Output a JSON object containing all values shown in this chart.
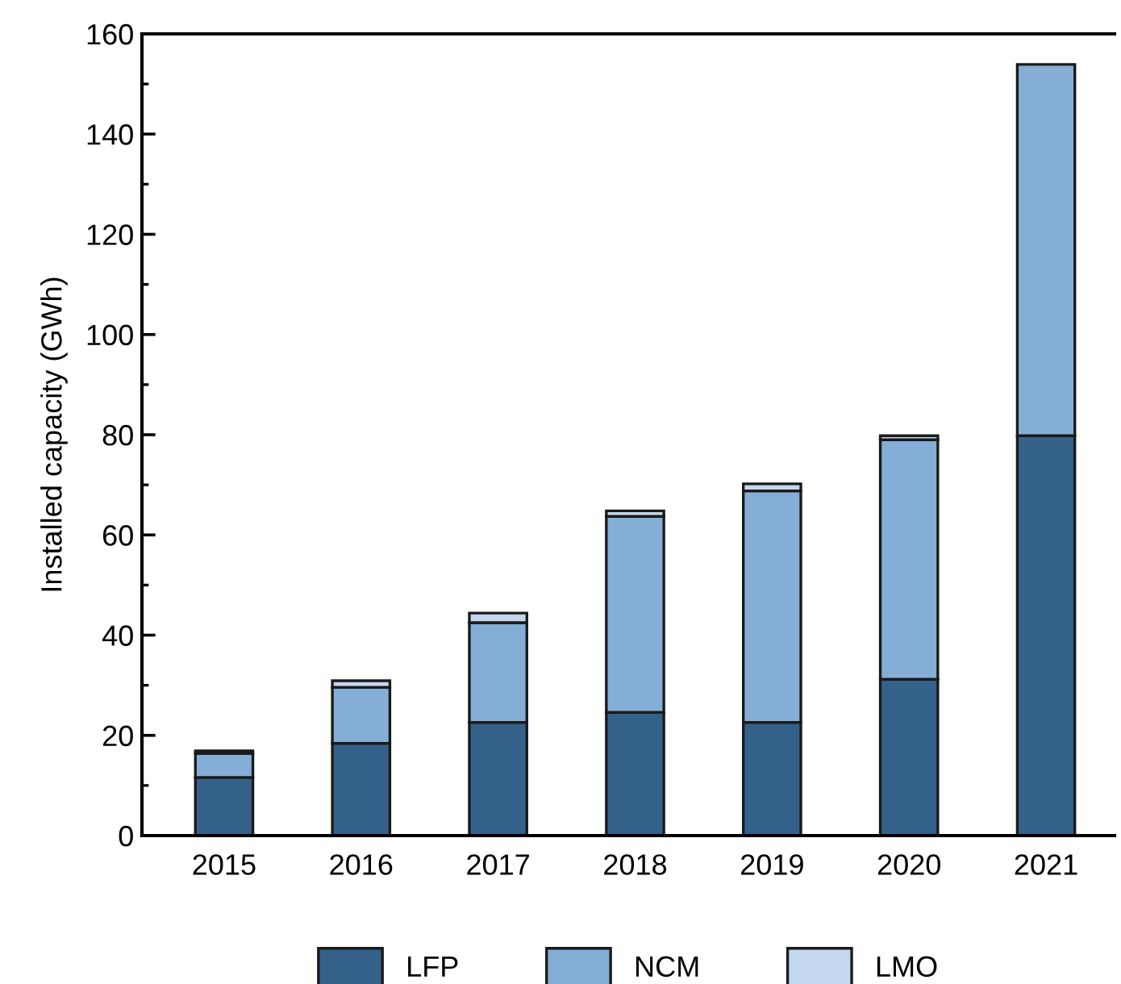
{
  "chart_data": {
    "type": "bar",
    "stacked": true,
    "ylabel": "Installed capacity (GWh)",
    "categories": [
      "2015",
      "2016",
      "2017",
      "2018",
      "2019",
      "2020",
      "2021"
    ],
    "series": [
      {
        "name": "LFP",
        "color": "#346189",
        "values": [
          11.6,
          18.4,
          22.6,
          24.6,
          22.6,
          31.2,
          79.8
        ]
      },
      {
        "name": "NCM",
        "color": "#84aed6",
        "values": [
          4.8,
          11.2,
          19.9,
          39.1,
          46.2,
          47.8,
          74.1
        ]
      },
      {
        "name": "LMO",
        "color": "#c5d7ee",
        "values": [
          0.5,
          1.3,
          1.9,
          1.1,
          1.4,
          0.8,
          null
        ]
      }
    ],
    "ylim": [
      0,
      160
    ],
    "yticks": [
      0,
      20,
      40,
      60,
      80,
      100,
      120,
      140,
      160
    ],
    "grid": false,
    "legend": "bottom"
  }
}
